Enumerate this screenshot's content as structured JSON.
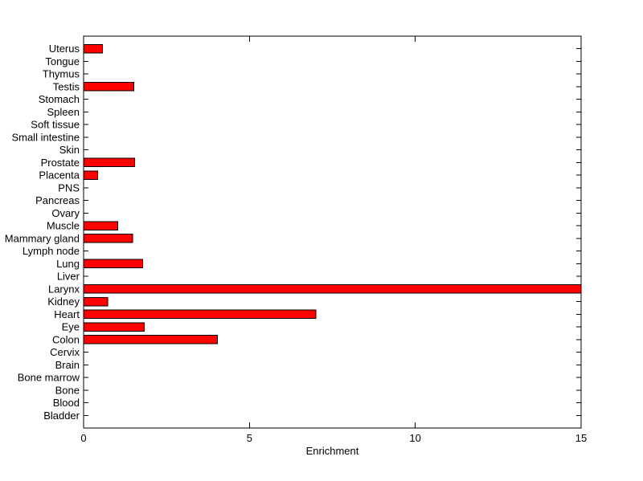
{
  "figure": {
    "background": "#ffffff"
  },
  "chart_data": {
    "type": "bar",
    "orientation": "horizontal",
    "title": "",
    "xlabel": "Enrichment",
    "ylabel": "",
    "categories": [
      "Uterus",
      "Tongue",
      "Thymus",
      "Testis",
      "Stomach",
      "Spleen",
      "Soft tissue",
      "Small intestine",
      "Skin",
      "Prostate",
      "Placenta",
      "PNS",
      "Pancreas",
      "Ovary",
      "Muscle",
      "Mammary gland",
      "Lymph node",
      "Lung",
      "Liver",
      "Larynx",
      "Kidney",
      "Heart",
      "Eye",
      "Colon",
      "Cervix",
      "Brain",
      "Bone marrow",
      "Bone",
      "Blood",
      "Bladder"
    ],
    "values": [
      0.57,
      0,
      0,
      1.51,
      0,
      0,
      0,
      0,
      0,
      1.54,
      0.43,
      0,
      0,
      0,
      1.03,
      1.48,
      0,
      1.78,
      0,
      15,
      0.73,
      7.0,
      1.83,
      4.04,
      0,
      0,
      0,
      0,
      0,
      0
    ],
    "xlim": [
      0,
      15
    ],
    "xticks": [
      0,
      5,
      10,
      15
    ],
    "xtick_labels": [
      "0",
      "5",
      "10",
      "15"
    ],
    "grid": false,
    "legend": null,
    "bar_color": "#ff0000",
    "bar_edge_color": "#000000",
    "axis_color": "#000000",
    "background_color": "#ffffff"
  }
}
